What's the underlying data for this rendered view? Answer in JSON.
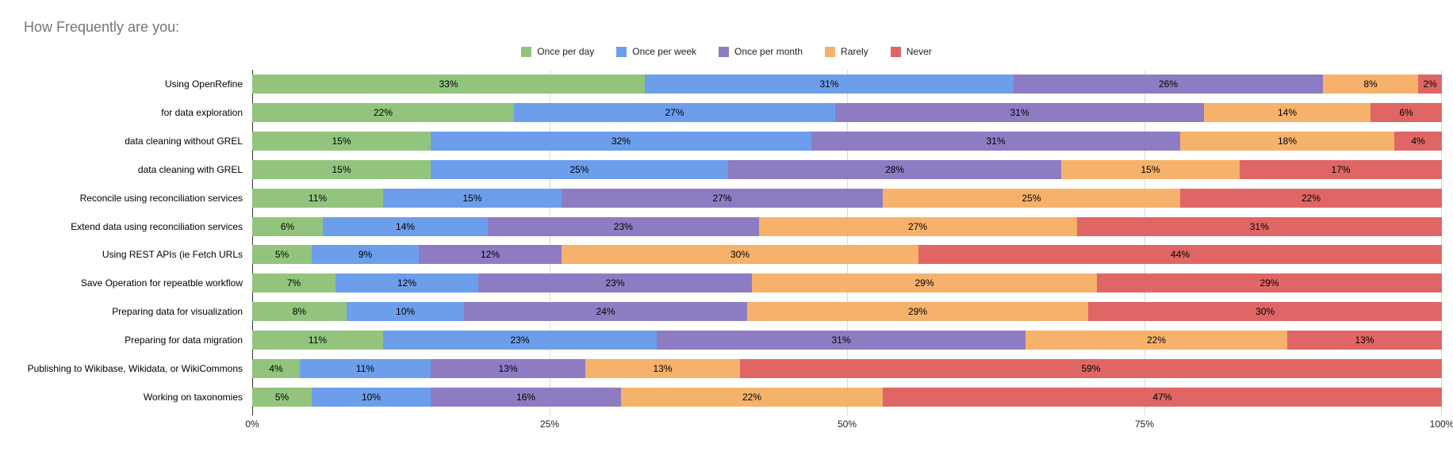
{
  "title": "How Frequently are you:",
  "chart_data": {
    "type": "bar",
    "orientation": "horizontal",
    "stacked": true,
    "title": "How Frequently are you:",
    "legend_position": "top",
    "grid": true,
    "xlim": [
      0,
      100
    ],
    "x_tick_labels": [
      "0%",
      "25%",
      "50%",
      "75%",
      "100%"
    ],
    "value_suffix": "%",
    "categories": [
      "Using OpenRefine",
      "for data exploration",
      "data cleaning without GREL",
      "data cleaning with GREL",
      "Reconcile using reconciliation services",
      "Extend data using reconciliation services",
      "Using REST APIs (ie Fetch URLs",
      "Save Operation for repeatble workflow",
      "Preparing data for visualization",
      "Preparing for data migration",
      "Publishing to Wikibase, Wikidata, or WikiCommons",
      "Working on taxonomies"
    ],
    "series": [
      {
        "name": "Once per day",
        "color": "#93c47d",
        "values": [
          33,
          22,
          15,
          15,
          11,
          6,
          5,
          7,
          8,
          11,
          4,
          5
        ]
      },
      {
        "name": "Once per week",
        "color": "#6d9eeb",
        "values": [
          31,
          27,
          32,
          25,
          15,
          14,
          9,
          12,
          10,
          23,
          11,
          10
        ]
      },
      {
        "name": "Once per month",
        "color": "#8e7cc3",
        "values": [
          26,
          31,
          31,
          28,
          27,
          23,
          12,
          23,
          24,
          31,
          13,
          16
        ]
      },
      {
        "name": "Rarely",
        "color": "#f6b26b",
        "values": [
          8,
          14,
          18,
          15,
          25,
          27,
          30,
          29,
          29,
          22,
          13,
          22
        ]
      },
      {
        "name": "Never",
        "color": "#e06666",
        "values": [
          2,
          6,
          4,
          17,
          22,
          31,
          44,
          29,
          30,
          13,
          59,
          47
        ]
      }
    ],
    "colors": {
      "gridline": "#d9d9d9",
      "axis_line": "#333333",
      "title_text": "#757575",
      "label_text": "#000000"
    }
  }
}
